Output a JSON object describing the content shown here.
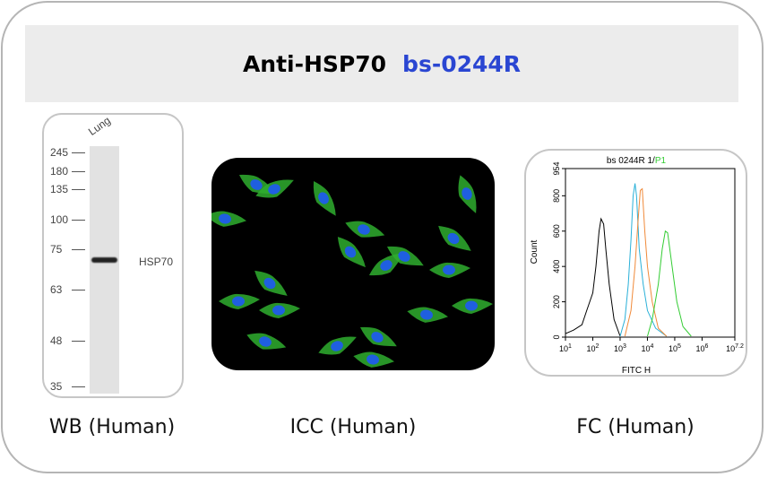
{
  "title": {
    "text": "Anti-HSP70",
    "catalog": "bs-0244R",
    "catalog_color": "#2a46d2"
  },
  "wb": {
    "lane_label": "Lung",
    "band_label": "HSP70",
    "markers": [
      "245",
      "180",
      "135",
      "100",
      "75",
      "63",
      "48",
      "35"
    ],
    "caption": "WB (Human)"
  },
  "icc": {
    "caption": "ICC (Human)",
    "stain_colors": {
      "cytoplasm": "#2fae2f",
      "nucleus": "#1f5fe0"
    }
  },
  "fc": {
    "caption": "FC (Human)"
  },
  "chart_data": {
    "type": "line",
    "title": "bs 0244R 1/",
    "title_highlight": "P1",
    "xlabel": "FITC H",
    "ylabel": "Count",
    "xscale": "log",
    "xlim": [
      10,
      15848932
    ],
    "ylim": [
      0,
      954
    ],
    "xticks": [
      "10^1",
      "10^2",
      "10^3",
      "10^4",
      "10^5",
      "10^6",
      "10^7.2"
    ],
    "yticks": [
      "0",
      "200",
      "400",
      "600",
      "800",
      "954"
    ],
    "series": [
      {
        "color": "#000000",
        "points": [
          [
            10,
            20
          ],
          [
            20,
            40
          ],
          [
            40,
            70
          ],
          [
            60,
            150
          ],
          [
            100,
            250
          ],
          [
            130,
            400
          ],
          [
            170,
            600
          ],
          [
            200,
            670
          ],
          [
            250,
            640
          ],
          [
            300,
            500
          ],
          [
            400,
            300
          ],
          [
            600,
            100
          ],
          [
            1000,
            5
          ]
        ]
      },
      {
        "color": "#2ab0d8",
        "points": [
          [
            1000,
            5
          ],
          [
            1500,
            100
          ],
          [
            2000,
            300
          ],
          [
            2500,
            550
          ],
          [
            3000,
            800
          ],
          [
            3500,
            870
          ],
          [
            4000,
            800
          ],
          [
            5000,
            500
          ],
          [
            7000,
            300
          ],
          [
            10000,
            150
          ],
          [
            20000,
            50
          ],
          [
            50000,
            5
          ]
        ]
      },
      {
        "color": "#f08a3a",
        "points": [
          [
            1500,
            5
          ],
          [
            2500,
            150
          ],
          [
            3500,
            400
          ],
          [
            4500,
            650
          ],
          [
            5500,
            830
          ],
          [
            6500,
            840
          ],
          [
            8000,
            600
          ],
          [
            10000,
            400
          ],
          [
            15000,
            200
          ],
          [
            25000,
            50
          ],
          [
            50000,
            5
          ]
        ]
      },
      {
        "color": "#33cc33",
        "points": [
          [
            10000,
            5
          ],
          [
            15000,
            100
          ],
          [
            25000,
            300
          ],
          [
            35000,
            500
          ],
          [
            45000,
            600
          ],
          [
            55000,
            590
          ],
          [
            80000,
            400
          ],
          [
            120000,
            200
          ],
          [
            200000,
            60
          ],
          [
            400000,
            5
          ]
        ]
      }
    ]
  }
}
